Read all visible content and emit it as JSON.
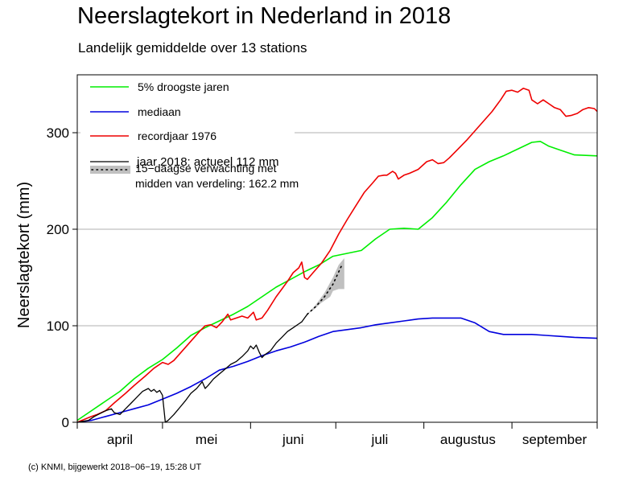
{
  "title": "Neerslagtekort in Nederland in 2018",
  "subtitle": "Landelijk gemiddelde over 13 stations",
  "footer": "(c) KNMI, bijgewerkt 2018−06−19, 15:28 UT",
  "chart_data": {
    "type": "line",
    "ylabel": "Neerslagtekort (mm)",
    "xlim": [
      0,
      183
    ],
    "ylim": [
      0,
      360
    ],
    "yticks": [
      {
        "value": 0,
        "label": "0"
      },
      {
        "value": 100,
        "label": "100"
      },
      {
        "value": 200,
        "label": "200"
      },
      {
        "value": 300,
        "label": "300"
      }
    ],
    "month_boundaries": [
      0,
      30,
      61,
      91,
      122,
      153,
      183
    ],
    "months": [
      {
        "label": "april",
        "center": 15
      },
      {
        "label": "mei",
        "center": 45.5
      },
      {
        "label": "juni",
        "center": 76
      },
      {
        "label": "juli",
        "center": 106.5
      },
      {
        "label": "augustus",
        "center": 137.5
      },
      {
        "label": "september",
        "center": 168
      }
    ],
    "grid": true,
    "legend_position": "top-left",
    "series": [
      {
        "name": "5% droogste jaren",
        "color": "#00ee00",
        "points": [
          [
            0,
            2
          ],
          [
            5,
            12
          ],
          [
            10,
            22
          ],
          [
            15,
            32
          ],
          [
            20,
            45
          ],
          [
            25,
            56
          ],
          [
            30,
            65
          ],
          [
            35,
            77
          ],
          [
            40,
            90
          ],
          [
            45,
            98
          ],
          [
            50,
            105
          ],
          [
            55,
            112
          ],
          [
            60,
            120
          ],
          [
            65,
            130
          ],
          [
            70,
            140
          ],
          [
            75,
            148
          ],
          [
            80,
            156
          ],
          [
            85,
            163
          ],
          [
            90,
            172
          ],
          [
            95,
            175
          ],
          [
            100,
            178
          ],
          [
            105,
            190
          ],
          [
            110,
            200
          ],
          [
            115,
            201
          ],
          [
            120,
            200
          ],
          [
            125,
            212
          ],
          [
            130,
            228
          ],
          [
            135,
            246
          ],
          [
            140,
            262
          ],
          [
            145,
            270
          ],
          [
            150,
            276
          ],
          [
            155,
            283
          ],
          [
            160,
            290
          ],
          [
            163,
            291
          ],
          [
            166,
            286
          ],
          [
            170,
            282
          ],
          [
            175,
            277
          ],
          [
            183,
            276
          ]
        ]
      },
      {
        "name": "mediaan",
        "color": "#0000dd",
        "points": [
          [
            0,
            0
          ],
          [
            5,
            2
          ],
          [
            10,
            6
          ],
          [
            15,
            10
          ],
          [
            20,
            14
          ],
          [
            25,
            18
          ],
          [
            30,
            24
          ],
          [
            35,
            30
          ],
          [
            40,
            37
          ],
          [
            45,
            45
          ],
          [
            50,
            54
          ],
          [
            55,
            58
          ],
          [
            60,
            63
          ],
          [
            65,
            69
          ],
          [
            70,
            74
          ],
          [
            75,
            78
          ],
          [
            80,
            83
          ],
          [
            85,
            89
          ],
          [
            90,
            94
          ],
          [
            95,
            96
          ],
          [
            100,
            98
          ],
          [
            105,
            101
          ],
          [
            110,
            103
          ],
          [
            115,
            105
          ],
          [
            120,
            107
          ],
          [
            125,
            108
          ],
          [
            130,
            108
          ],
          [
            135,
            108
          ],
          [
            140,
            103
          ],
          [
            145,
            94
          ],
          [
            150,
            91
          ],
          [
            155,
            91
          ],
          [
            160,
            91
          ],
          [
            165,
            90
          ],
          [
            170,
            89
          ],
          [
            175,
            88
          ],
          [
            183,
            87
          ]
        ]
      },
      {
        "name": "recordjaar 1976",
        "color": "#ee0000",
        "points": [
          [
            0,
            0
          ],
          [
            5,
            6
          ],
          [
            7,
            8
          ],
          [
            10,
            12
          ],
          [
            13,
            20
          ],
          [
            17,
            30
          ],
          [
            20,
            38
          ],
          [
            24,
            48
          ],
          [
            27,
            56
          ],
          [
            30,
            62
          ],
          [
            32,
            60
          ],
          [
            34,
            64
          ],
          [
            37,
            74
          ],
          [
            40,
            84
          ],
          [
            43,
            94
          ],
          [
            45,
            100
          ],
          [
            47,
            101
          ],
          [
            49,
            98
          ],
          [
            51,
            104
          ],
          [
            53,
            112
          ],
          [
            54,
            106
          ],
          [
            56,
            108
          ],
          [
            58,
            110
          ],
          [
            60,
            108
          ],
          [
            62,
            114
          ],
          [
            63,
            106
          ],
          [
            65,
            108
          ],
          [
            67,
            116
          ],
          [
            70,
            130
          ],
          [
            72,
            138
          ],
          [
            74,
            146
          ],
          [
            76,
            155
          ],
          [
            78,
            160
          ],
          [
            79,
            166
          ],
          [
            80,
            150
          ],
          [
            81,
            148
          ],
          [
            83,
            155
          ],
          [
            86,
            165
          ],
          [
            89,
            178
          ],
          [
            92,
            195
          ],
          [
            95,
            210
          ],
          [
            98,
            224
          ],
          [
            101,
            238
          ],
          [
            104,
            248
          ],
          [
            106,
            255
          ],
          [
            108,
            256
          ],
          [
            109,
            256
          ],
          [
            111,
            260
          ],
          [
            112,
            258
          ],
          [
            113,
            252
          ],
          [
            115,
            256
          ],
          [
            117,
            258
          ],
          [
            120,
            262
          ],
          [
            123,
            270
          ],
          [
            125,
            272
          ],
          [
            127,
            268
          ],
          [
            129,
            269
          ],
          [
            131,
            274
          ],
          [
            134,
            283
          ],
          [
            137,
            292
          ],
          [
            140,
            302
          ],
          [
            143,
            312
          ],
          [
            146,
            322
          ],
          [
            149,
            334
          ],
          [
            151,
            343
          ],
          [
            153,
            344
          ],
          [
            155,
            342
          ],
          [
            157,
            346
          ],
          [
            159,
            344
          ],
          [
            160,
            334
          ],
          [
            162,
            330
          ],
          [
            164,
            334
          ],
          [
            166,
            330
          ],
          [
            168,
            326
          ],
          [
            170,
            324
          ],
          [
            172,
            317
          ],
          [
            174,
            318
          ],
          [
            176,
            320
          ],
          [
            178,
            324
          ],
          [
            180,
            326
          ],
          [
            182,
            325
          ],
          [
            183,
            322
          ]
        ]
      },
      {
        "name": "jaar 2018: actueel 112 mm",
        "color": "#000000",
        "points": [
          [
            0,
            0
          ],
          [
            2,
            1
          ],
          [
            4,
            2
          ],
          [
            6,
            6
          ],
          [
            8,
            9
          ],
          [
            10,
            12
          ],
          [
            12,
            14
          ],
          [
            13,
            10
          ],
          [
            15,
            8
          ],
          [
            17,
            14
          ],
          [
            19,
            20
          ],
          [
            21,
            26
          ],
          [
            23,
            32
          ],
          [
            25,
            35
          ],
          [
            26,
            32
          ],
          [
            27,
            34
          ],
          [
            28,
            31
          ],
          [
            29,
            33
          ],
          [
            30,
            28
          ],
          [
            31,
            0
          ],
          [
            32,
            2
          ],
          [
            34,
            8
          ],
          [
            36,
            15
          ],
          [
            38,
            22
          ],
          [
            40,
            30
          ],
          [
            42,
            35
          ],
          [
            44,
            42
          ],
          [
            45,
            35
          ],
          [
            46,
            38
          ],
          [
            48,
            45
          ],
          [
            50,
            50
          ],
          [
            52,
            55
          ],
          [
            54,
            60
          ],
          [
            56,
            63
          ],
          [
            58,
            68
          ],
          [
            60,
            74
          ],
          [
            61,
            79
          ],
          [
            62,
            76
          ],
          [
            63,
            80
          ],
          [
            64,
            73
          ],
          [
            65,
            67
          ],
          [
            66,
            70
          ],
          [
            67,
            72
          ],
          [
            68,
            74
          ],
          [
            70,
            82
          ],
          [
            72,
            88
          ],
          [
            74,
            94
          ],
          [
            76,
            98
          ],
          [
            78,
            102
          ],
          [
            79,
            104
          ],
          [
            80,
            108
          ],
          [
            81,
            112
          ]
        ]
      }
    ],
    "forecast": {
      "name": "15−daagse verwachting met",
      "name_line2": "midden van verdeling: 162.2 mm",
      "color": "#c0c0c0",
      "median_points": [
        [
          81,
          112
        ],
        [
          84,
          120
        ],
        [
          87,
          130
        ],
        [
          90,
          143
        ],
        [
          93,
          162
        ]
      ],
      "upper": [
        [
          81,
          112
        ],
        [
          84,
          122
        ],
        [
          87,
          134
        ],
        [
          90,
          150
        ],
        [
          92,
          163
        ],
        [
          94,
          170
        ]
      ],
      "lower": [
        [
          94,
          138
        ],
        [
          92,
          138
        ],
        [
          90,
          136
        ],
        [
          89,
          130
        ],
        [
          86,
          124
        ],
        [
          83,
          116
        ],
        [
          81,
          112
        ]
      ]
    }
  }
}
